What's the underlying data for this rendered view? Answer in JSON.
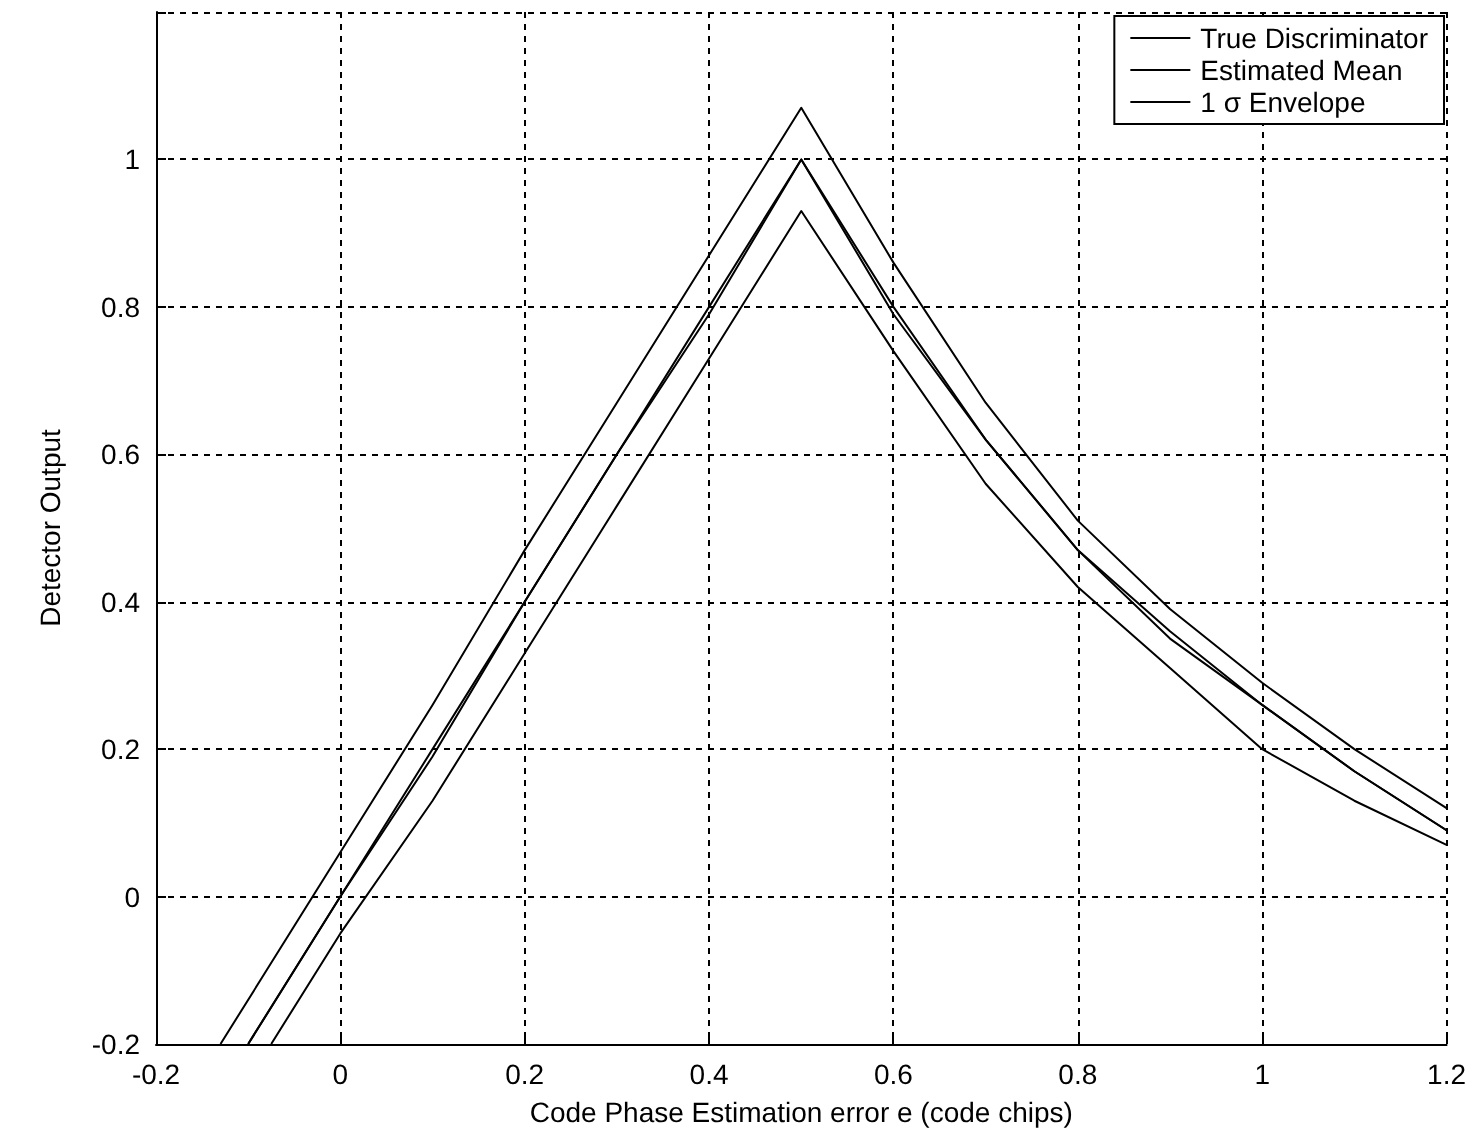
{
  "chart_data": {
    "type": "line",
    "xlabel": "Code Phase Estimation error e (code chips)",
    "ylabel": "Detector Output",
    "xlim": [
      -0.2,
      1.2
    ],
    "xticks": [
      -0.2,
      0,
      0.2,
      0.4,
      0.6,
      0.8,
      1,
      1.2
    ],
    "ylim": [
      -0.2,
      1.2
    ],
    "yticks": [
      -0.2,
      0,
      0.2,
      0.4,
      0.6,
      0.8,
      1,
      {
        "value": 1.2,
        "label": null
      }
    ],
    "grid": true,
    "legend": "top right",
    "marker": "none",
    "line_style": "solid",
    "series": [
      {
        "name": "True Discriminator",
        "color": "#000000",
        "x": [
          -0.1,
          0,
          0.1,
          0.2,
          0.3,
          0.4,
          0.5,
          0.6,
          0.7,
          0.8,
          0.9,
          1.0,
          1.1,
          1.2
        ],
        "values": [
          -0.2,
          0,
          0.2,
          0.4,
          0.6,
          0.8,
          1,
          0.8,
          0.62,
          0.47,
          0.36,
          0.26,
          0.17,
          0.09
        ]
      },
      {
        "name": "Estimated Mean",
        "color": "#000000",
        "x": [
          -0.1,
          0,
          0.1,
          0.2,
          0.3,
          0.4,
          0.5,
          0.6,
          0.7,
          0.8,
          0.9,
          1.0,
          1.1,
          1.2
        ],
        "values": [
          -0.2,
          0,
          0.19,
          0.4,
          0.6,
          0.79,
          1,
          0.79,
          0.62,
          0.47,
          0.35,
          0.26,
          0.17,
          0.09
        ]
      },
      {
        "name": "1 σ Envelope",
        "color": "#000000",
        "x": [
          -0.13,
          0,
          0.1,
          0.2,
          0.3,
          0.4,
          0.5,
          0.6,
          0.7,
          0.8,
          0.9,
          1.0,
          1.1,
          1.2
        ],
        "values": [
          -0.2,
          0.06,
          0.26,
          0.47,
          0.67,
          0.87,
          1.07,
          0.86,
          0.67,
          0.51,
          0.39,
          0.29,
          0.2,
          0.12
        ]
      },
      {
        "color": "#000000",
        "x": [
          -0.075,
          0,
          0.1,
          0.2,
          0.3,
          0.4,
          0.5,
          0.6,
          0.7,
          0.8,
          0.9,
          1.0,
          1.1,
          1.2
        ],
        "values": [
          -0.2,
          -0.05,
          0.13,
          0.33,
          0.53,
          0.73,
          0.93,
          0.74,
          0.56,
          0.42,
          0.31,
          0.2,
          0.13,
          0.07
        ]
      }
    ]
  }
}
